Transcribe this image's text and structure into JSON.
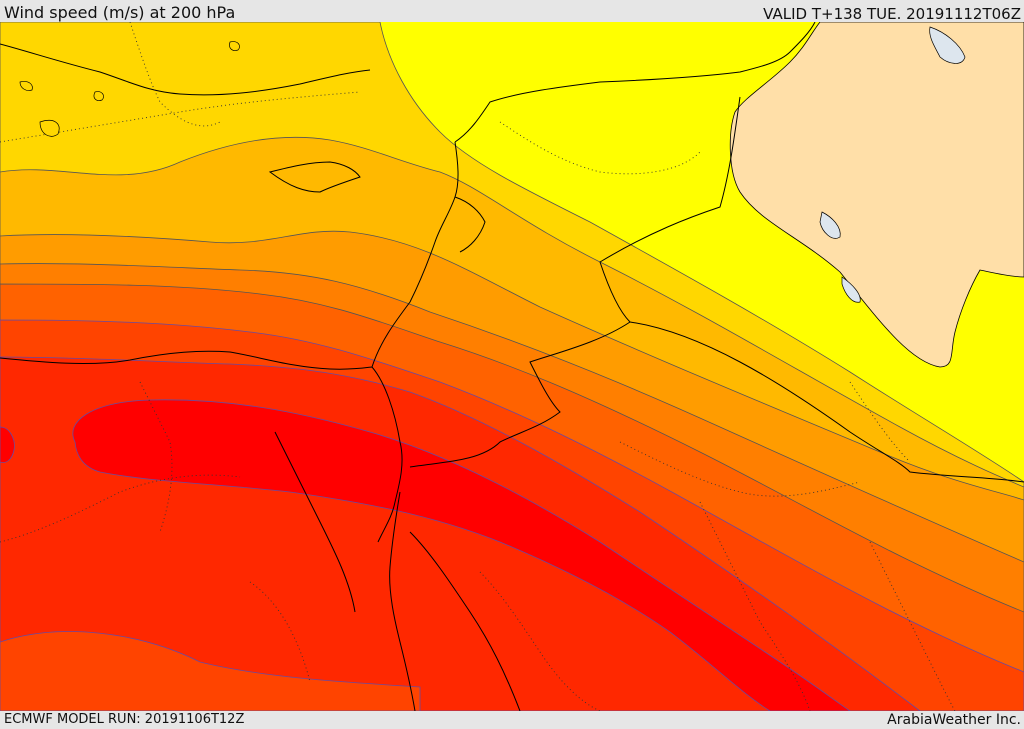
{
  "header": {
    "title": "Wind speed (m/s) at 200 hPa",
    "valid": "VALID T+138 TUE. 20191112T06Z"
  },
  "footer": {
    "model_run": "ECMWF MODEL RUN: 20191106T12Z",
    "credit": "ArabiaWeather Inc."
  },
  "colors": {
    "band_1": "#ffff00",
    "band_2": "#ffd700",
    "band_3": "#ffb900",
    "band_4": "#ff9c00",
    "band_5": "#ff7f00",
    "band_6": "#ff6200",
    "band_7": "#ff4400",
    "band_8": "#ff2800",
    "band_9": "#ff0000",
    "land_mask": "#ffdfa8",
    "water": "#dde6ee",
    "contour": "#555555",
    "border": "#000000"
  }
}
